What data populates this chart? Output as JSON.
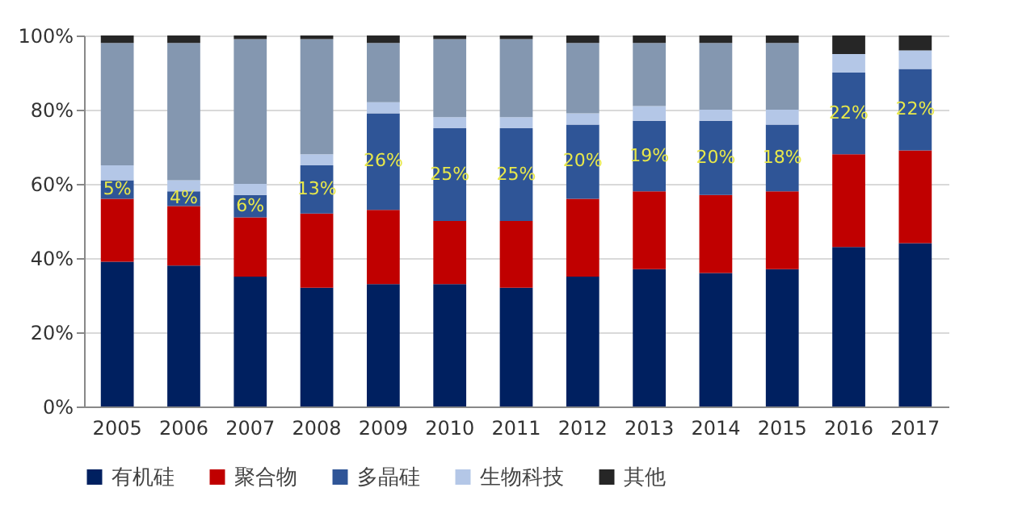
{
  "chart_data": {
    "type": "bar",
    "stacked": true,
    "categories": [
      "2005",
      "2006",
      "2007",
      "2008",
      "2009",
      "2010",
      "2011",
      "2012",
      "2013",
      "2014",
      "2015",
      "2016",
      "2017"
    ],
    "series": [
      {
        "name": "有机硅",
        "color": "#002060",
        "values": [
          39,
          38,
          35,
          32,
          33,
          33,
          32,
          35,
          37,
          36,
          37,
          43,
          44
        ]
      },
      {
        "name": "聚合物",
        "color": "#c00000",
        "values": [
          17,
          16,
          16,
          20,
          20,
          17,
          18,
          21,
          21,
          21,
          21,
          25,
          25
        ]
      },
      {
        "name": "多晶硅",
        "color": "#2f5597",
        "values": [
          5,
          4,
          6,
          13,
          26,
          25,
          25,
          20,
          19,
          20,
          18,
          22,
          22
        ],
        "value_labels": [
          "5%",
          "4%",
          "6%",
          "13%",
          "26%",
          "25%",
          "25%",
          "20%",
          "19%",
          "20%",
          "18%",
          "22%",
          "22%"
        ]
      },
      {
        "name": "生物科技",
        "color": "#b4c7e7",
        "values": [
          4,
          3,
          3,
          3,
          3,
          3,
          3,
          3,
          4,
          3,
          4,
          5,
          5
        ]
      },
      {
        "color": "#8497b0",
        "values": [
          33,
          37,
          39,
          31,
          16,
          21,
          21,
          19,
          17,
          18,
          18,
          0,
          0
        ]
      },
      {
        "name": "其他",
        "color": "#262626",
        "values": [
          2,
          2,
          1,
          1,
          2,
          1,
          1,
          2,
          2,
          2,
          2,
          5,
          4
        ]
      }
    ],
    "ylim": [
      0,
      100
    ],
    "yticks": [
      {
        "value": 0,
        "label": "0%"
      },
      {
        "value": 20,
        "label": "20%"
      },
      {
        "value": 40,
        "label": "40%"
      },
      {
        "value": 60,
        "label": "60%"
      },
      {
        "value": 80,
        "label": "80%"
      },
      {
        "value": 100,
        "label": "100%"
      }
    ],
    "grid": "y",
    "legend": "bottom"
  }
}
